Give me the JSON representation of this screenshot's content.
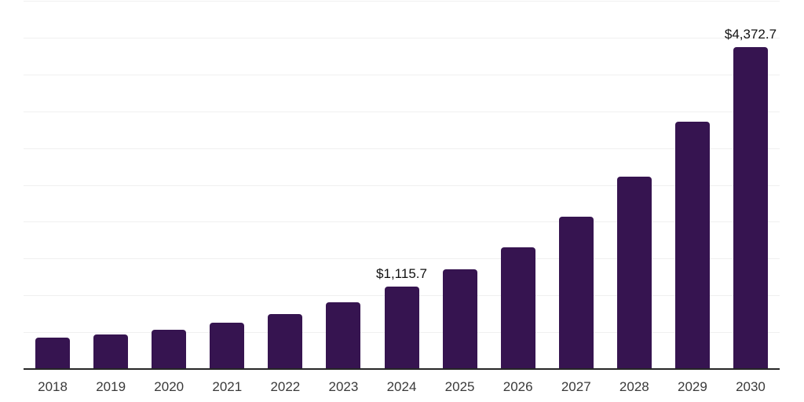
{
  "colors": {
    "background": "#ffffff",
    "bar": "#361450",
    "axis_line": "#262626",
    "gridline": "#f0f0f0",
    "year_label_text": "#3a3a3a",
    "value_label_text": "#111111"
  },
  "chart_data": {
    "type": "bar",
    "title": "",
    "xlabel": "",
    "ylabel": "",
    "categories": [
      "2018",
      "2019",
      "2020",
      "2021",
      "2022",
      "2023",
      "2024",
      "2025",
      "2026",
      "2027",
      "2028",
      "2029",
      "2030"
    ],
    "values": [
      425,
      470,
      530,
      625,
      745,
      905,
      1115.7,
      1350,
      1650,
      2070,
      2610,
      3360,
      4372.7
    ],
    "annotations": [
      {
        "category": "2024",
        "text": "$1,115.7"
      },
      {
        "category": "2030",
        "text": "$4,372.7"
      }
    ],
    "ylim": [
      0,
      5000
    ],
    "gridline_interval": 500,
    "grid": true,
    "y_tick_labels_visible": false,
    "legend": false
  }
}
